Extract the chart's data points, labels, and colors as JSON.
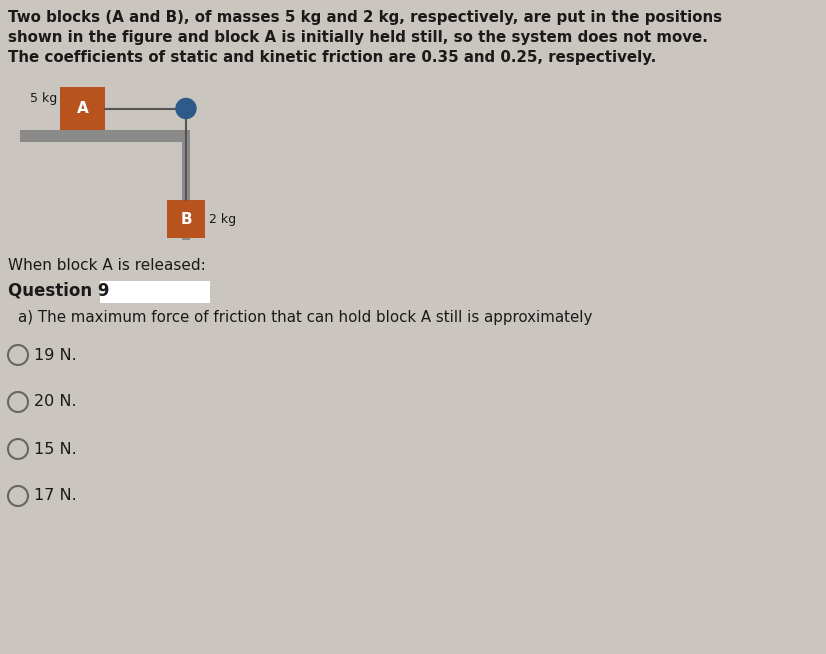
{
  "background_color": "#cac5be",
  "title_text_line1": "Two blocks (A and B), of masses 5 kg and 2 kg, respectively, are put in the positions",
  "title_text_line2": "shown in the figure and block A is initially held still, so the system does not move.",
  "title_text_line3": "The coefficients of static and kinetic friction are 0.35 and 0.25, respectively.",
  "when_released_text": "When block A is released:",
  "question_text": "Question 9",
  "question_box_color": "#ffffff",
  "sub_question_text": "a) The maximum force of friction that can hold block A still is approximately",
  "options": [
    "19 N.",
    "20 N.",
    "15 N.",
    "17 N."
  ],
  "block_A_color": "#b8531e",
  "block_B_color": "#b8531e",
  "pulley_color": "#2e5a8a",
  "rope_color": "#555555",
  "table_color": "#8a8a8a",
  "wall_color": "#8a8a8a",
  "label_A": "A",
  "label_B": "B",
  "mass_A_label": "5 kg",
  "mass_B_label": "2 kg",
  "text_color": "#1a1a1a",
  "radio_color": "#666666"
}
